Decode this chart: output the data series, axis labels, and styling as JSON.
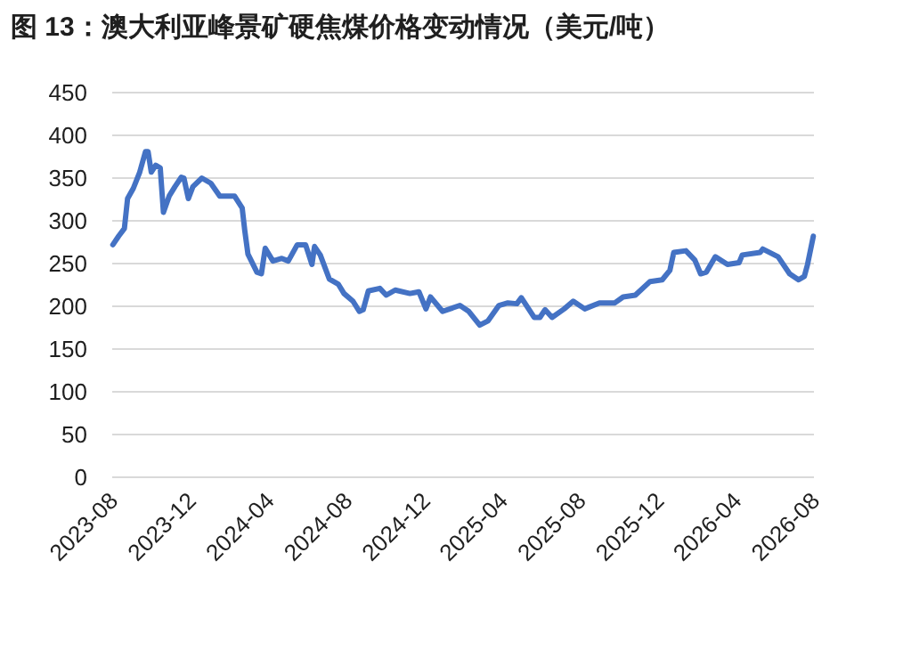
{
  "chart_data": {
    "type": "line",
    "title": "图 13：澳大利亚峰景矿硬焦煤价格变动情况（美元/吨）",
    "x": [
      "2023-08-02",
      "2023-08-11",
      "2023-08-20",
      "2023-08-25",
      "2023-09-03",
      "2023-09-13",
      "2023-09-22",
      "2023-09-26",
      "2023-10-01",
      "2023-10-08",
      "2023-10-15",
      "2023-10-20",
      "2023-10-29",
      "2023-11-07",
      "2023-11-17",
      "2023-11-21",
      "2023-11-28",
      "2023-12-05",
      "2023-12-19",
      "2024-01-02",
      "2024-01-16",
      "2024-02-08",
      "2024-02-20",
      "2024-02-24",
      "2024-02-29",
      "2024-03-14",
      "2024-03-21",
      "2024-03-27",
      "2024-04-08",
      "2024-04-22",
      "2024-05-02",
      "2024-05-16",
      "2024-05-29",
      "2024-06-08",
      "2024-06-12",
      "2024-06-21",
      "2024-07-05",
      "2024-07-19",
      "2024-07-28",
      "2024-08-11",
      "2024-08-21",
      "2024-08-27",
      "2024-09-04",
      "2024-09-22",
      "2024-10-02",
      "2024-10-16",
      "2024-11-08",
      "2024-11-22",
      "2024-12-03",
      "2024-12-10",
      "2024-12-29",
      "2025-01-25",
      "2025-02-08",
      "2025-02-25",
      "2025-03-10",
      "2025-03-27",
      "2025-04-10",
      "2025-04-24",
      "2025-05-01",
      "2025-05-21",
      "2025-05-30",
      "2025-06-07",
      "2025-06-18",
      "2025-07-07",
      "2025-07-21",
      "2025-08-08",
      "2025-08-31",
      "2025-09-24",
      "2025-10-07",
      "2025-10-26",
      "2025-11-18",
      "2025-12-07",
      "2025-12-19",
      "2025-12-25",
      "2026-01-13",
      "2026-01-27",
      "2026-02-05",
      "2026-02-14",
      "2026-02-28",
      "2026-03-19",
      "2026-04-06",
      "2026-04-11",
      "2026-05-09",
      "2026-05-13",
      "2026-06-06",
      "2026-06-24",
      "2026-07-08",
      "2026-07-17",
      "2026-07-22",
      "2026-07-31"
    ],
    "series": [
      {
        "color": "#4472c4",
        "values": [
          272,
          282,
          291,
          326,
          338,
          357,
          381,
          381,
          357,
          365,
          362,
          310,
          329,
          340,
          351,
          350,
          326,
          340,
          350,
          344,
          329,
          329,
          315,
          289,
          261,
          240,
          238,
          268,
          253,
          256,
          253,
          272,
          272,
          249,
          270,
          260,
          232,
          226,
          215,
          206,
          194,
          196,
          218,
          221,
          213,
          219,
          215,
          217,
          197,
          211,
          194,
          201,
          194,
          178,
          183,
          201,
          204,
          203,
          210,
          187,
          187,
          196,
          187,
          197,
          206,
          197,
          204,
          204,
          211,
          213,
          229,
          231,
          242,
          263,
          265,
          254,
          238,
          240,
          258,
          249,
          251,
          260,
          263,
          267,
          258,
          238,
          231,
          235,
          249,
          282
        ]
      }
    ],
    "xlim": [
      "2023-08",
      "2026-08"
    ],
    "xticks": [
      "2023-08",
      "2023-12",
      "2024-04",
      "2024-08",
      "2024-12",
      "2025-04",
      "2025-08",
      "2025-12",
      "2026-04",
      "2026-08"
    ],
    "ylim": [
      0,
      450
    ],
    "yticks": [
      0,
      50,
      100,
      150,
      200,
      250,
      300,
      350,
      400,
      450
    ],
    "grid": "y",
    "marker": "none",
    "line_style": "solid"
  }
}
